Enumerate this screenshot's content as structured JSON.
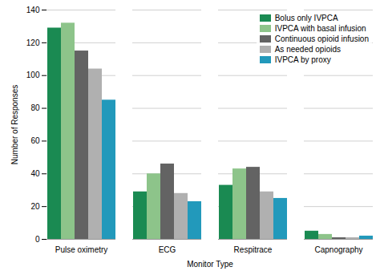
{
  "chart_data": {
    "type": "bar",
    "categories": [
      "Pulse oximetry",
      "ECG",
      "Respitrace",
      "Capnography"
    ],
    "series": [
      {
        "name": "Bolus only IVPCA",
        "color": "#1a8a52",
        "values": [
          129,
          29,
          33,
          5
        ]
      },
      {
        "name": "IVPCA with basal infusion",
        "color": "#8dc48a",
        "values": [
          132,
          40,
          43,
          3
        ]
      },
      {
        "name": "Continuous opioid infusion",
        "color": "#636363",
        "values": [
          115,
          46,
          44,
          1
        ]
      },
      {
        "name": "As needed opioids",
        "color": "#b0b0b0",
        "values": [
          104,
          28,
          29,
          1
        ]
      },
      {
        "name": "IVPCA by proxy",
        "color": "#2299bb",
        "values": [
          85,
          23,
          25,
          2
        ]
      }
    ],
    "xlabel": "Monitor Type",
    "ylabel": "Number of Responses",
    "ylim": [
      0,
      140
    ],
    "yticks": [
      0,
      20,
      40,
      60,
      80,
      100,
      120,
      140
    ],
    "grid": true,
    "legend": "upper right"
  }
}
